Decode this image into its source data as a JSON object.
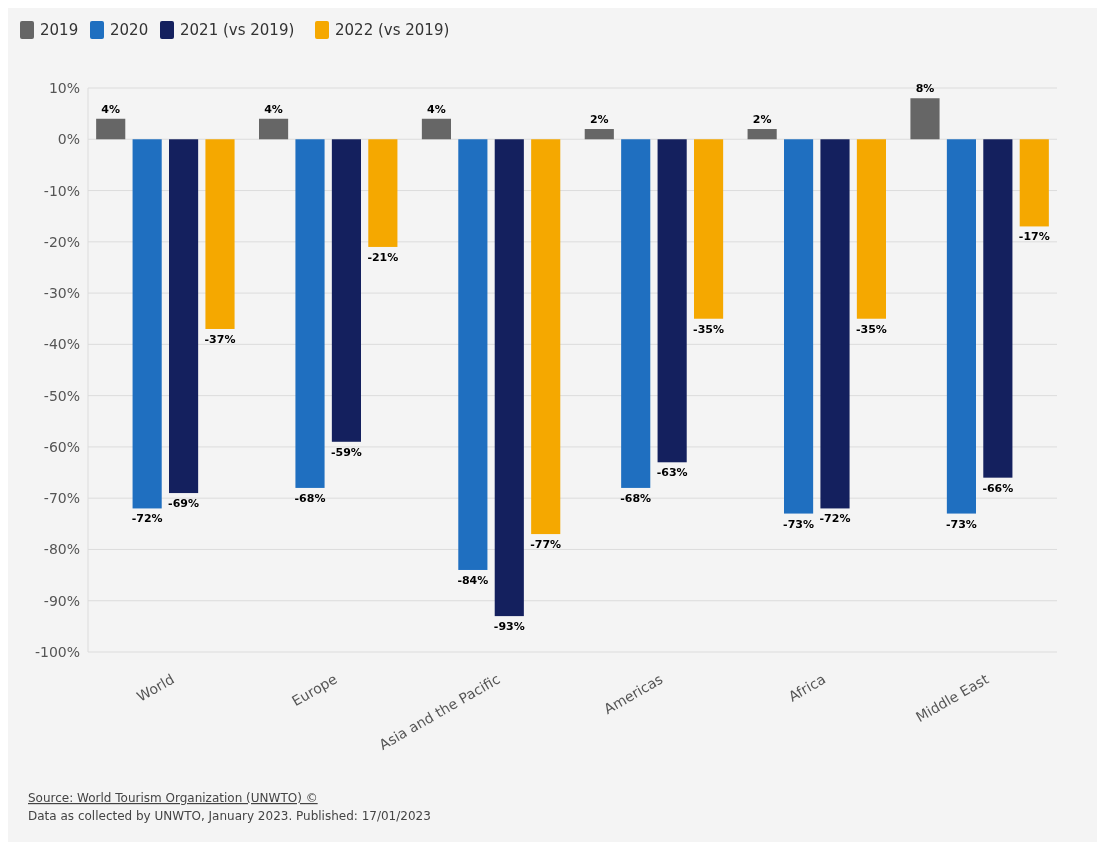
{
  "chart_data": {
    "type": "bar",
    "categories": [
      "World",
      "Europe",
      "Asia and the Pacific",
      "Americas",
      "Africa",
      "Middle East"
    ],
    "series": [
      {
        "name": "2019",
        "color": "#666666",
        "values": [
          4,
          4,
          4,
          2,
          2,
          8
        ],
        "value_labels": [
          "4%",
          "4%",
          "4%",
          "2%",
          "2%",
          "8%"
        ]
      },
      {
        "name": "2020",
        "color": "#1f6fc0",
        "values": [
          -72,
          -68,
          -84,
          -68,
          -73,
          -73
        ],
        "value_labels": [
          "-72%",
          "-68%",
          "-84%",
          "-68%",
          "-73%",
          "-73%"
        ]
      },
      {
        "name": "2021 (vs 2019)",
        "color": "#14205e",
        "values": [
          -69,
          -59,
          -93,
          -63,
          -72,
          -66
        ],
        "value_labels": [
          "-69%",
          "-59%",
          "-93%",
          "-63%",
          "-72%",
          "-66%"
        ]
      },
      {
        "name": "2022 (vs 2019)",
        "color": "#f5a800",
        "values": [
          -37,
          -21,
          -77,
          -35,
          -35,
          -17
        ],
        "value_labels": [
          "-37%",
          "-21%",
          "-77%",
          "-35%",
          "-35%",
          "-17%"
        ]
      }
    ],
    "ylim": [
      -100,
      10
    ],
    "yticks": [
      {
        "value": 10,
        "label": "10%"
      },
      {
        "value": 0,
        "label": "0%"
      },
      {
        "value": -10,
        "label": "-10%"
      },
      {
        "value": -20,
        "label": "-20%"
      },
      {
        "value": -30,
        "label": "-30%"
      },
      {
        "value": -40,
        "label": "-40%"
      },
      {
        "value": -50,
        "label": "-50%"
      },
      {
        "value": -60,
        "label": "-60%"
      },
      {
        "value": -70,
        "label": "-70%"
      },
      {
        "value": -80,
        "label": "-80%"
      },
      {
        "value": -90,
        "label": "-90%"
      },
      {
        "value": -100,
        "label": "-100%"
      }
    ],
    "grid": "y",
    "legend": "top left",
    "annotations": [
      "Source: World Tourism Organization (UNWTO) ©",
      "Data as collected by UNWTO, January 2023. Published: 17/01/2023"
    ]
  }
}
